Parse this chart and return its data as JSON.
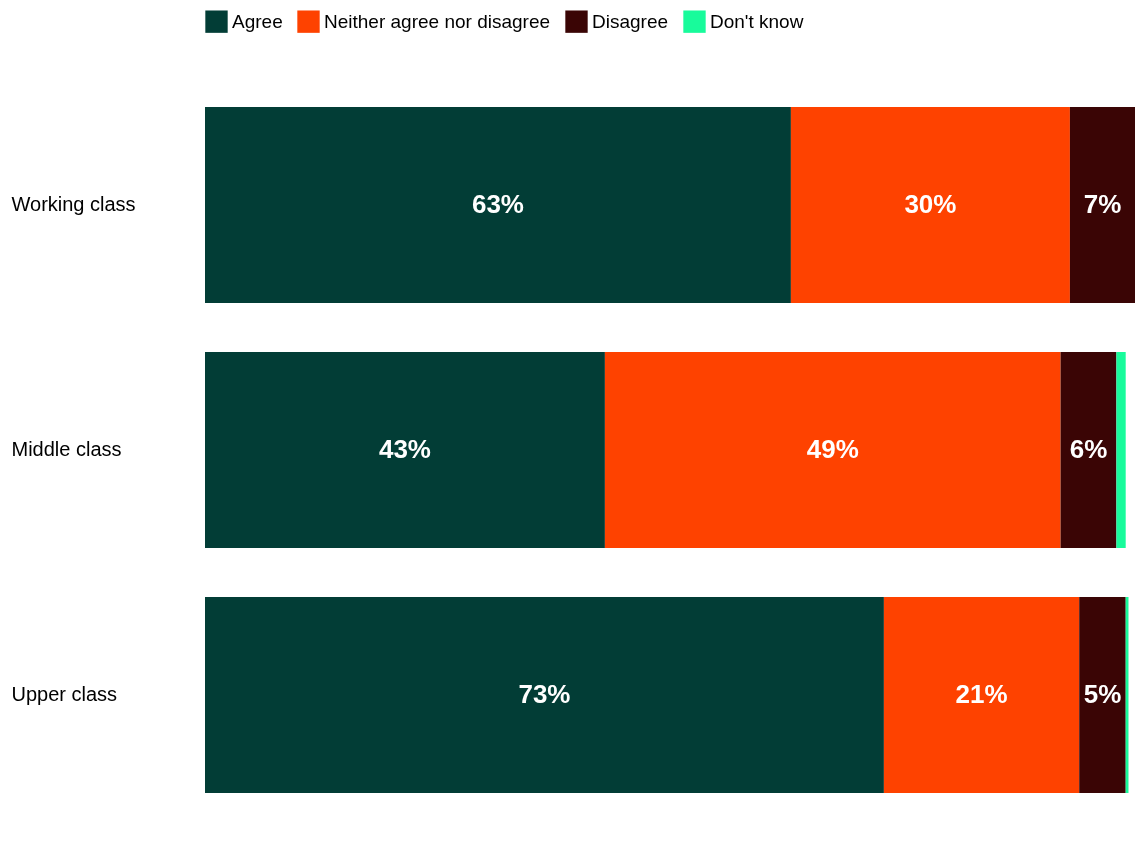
{
  "chart_data": {
    "type": "bar",
    "orientation": "horizontal",
    "stacked": true,
    "categories": [
      "Working class",
      "Middle class",
      "Upper class"
    ],
    "xlim": [
      0,
      100
    ],
    "legend": "top",
    "tick_labels": "y",
    "series": [
      {
        "name": "Agree",
        "color": "#023d36",
        "values": [
          63,
          43,
          73
        ],
        "value_labels": [
          "63%",
          "43%",
          "73%"
        ]
      },
      {
        "name": "Neither agree nor disagree",
        "color": "#fe4200",
        "values": [
          30,
          49,
          21
        ],
        "value_labels": [
          "30%",
          "49%",
          "21%"
        ]
      },
      {
        "name": "Disagree",
        "color": "#3a0505",
        "values": [
          7,
          6,
          5
        ],
        "value_labels": [
          "7%",
          "6%",
          "5%"
        ]
      },
      {
        "name": "Don't know",
        "color": "#18fb9b",
        "values": [
          0,
          1,
          0.3
        ]
      }
    ]
  }
}
